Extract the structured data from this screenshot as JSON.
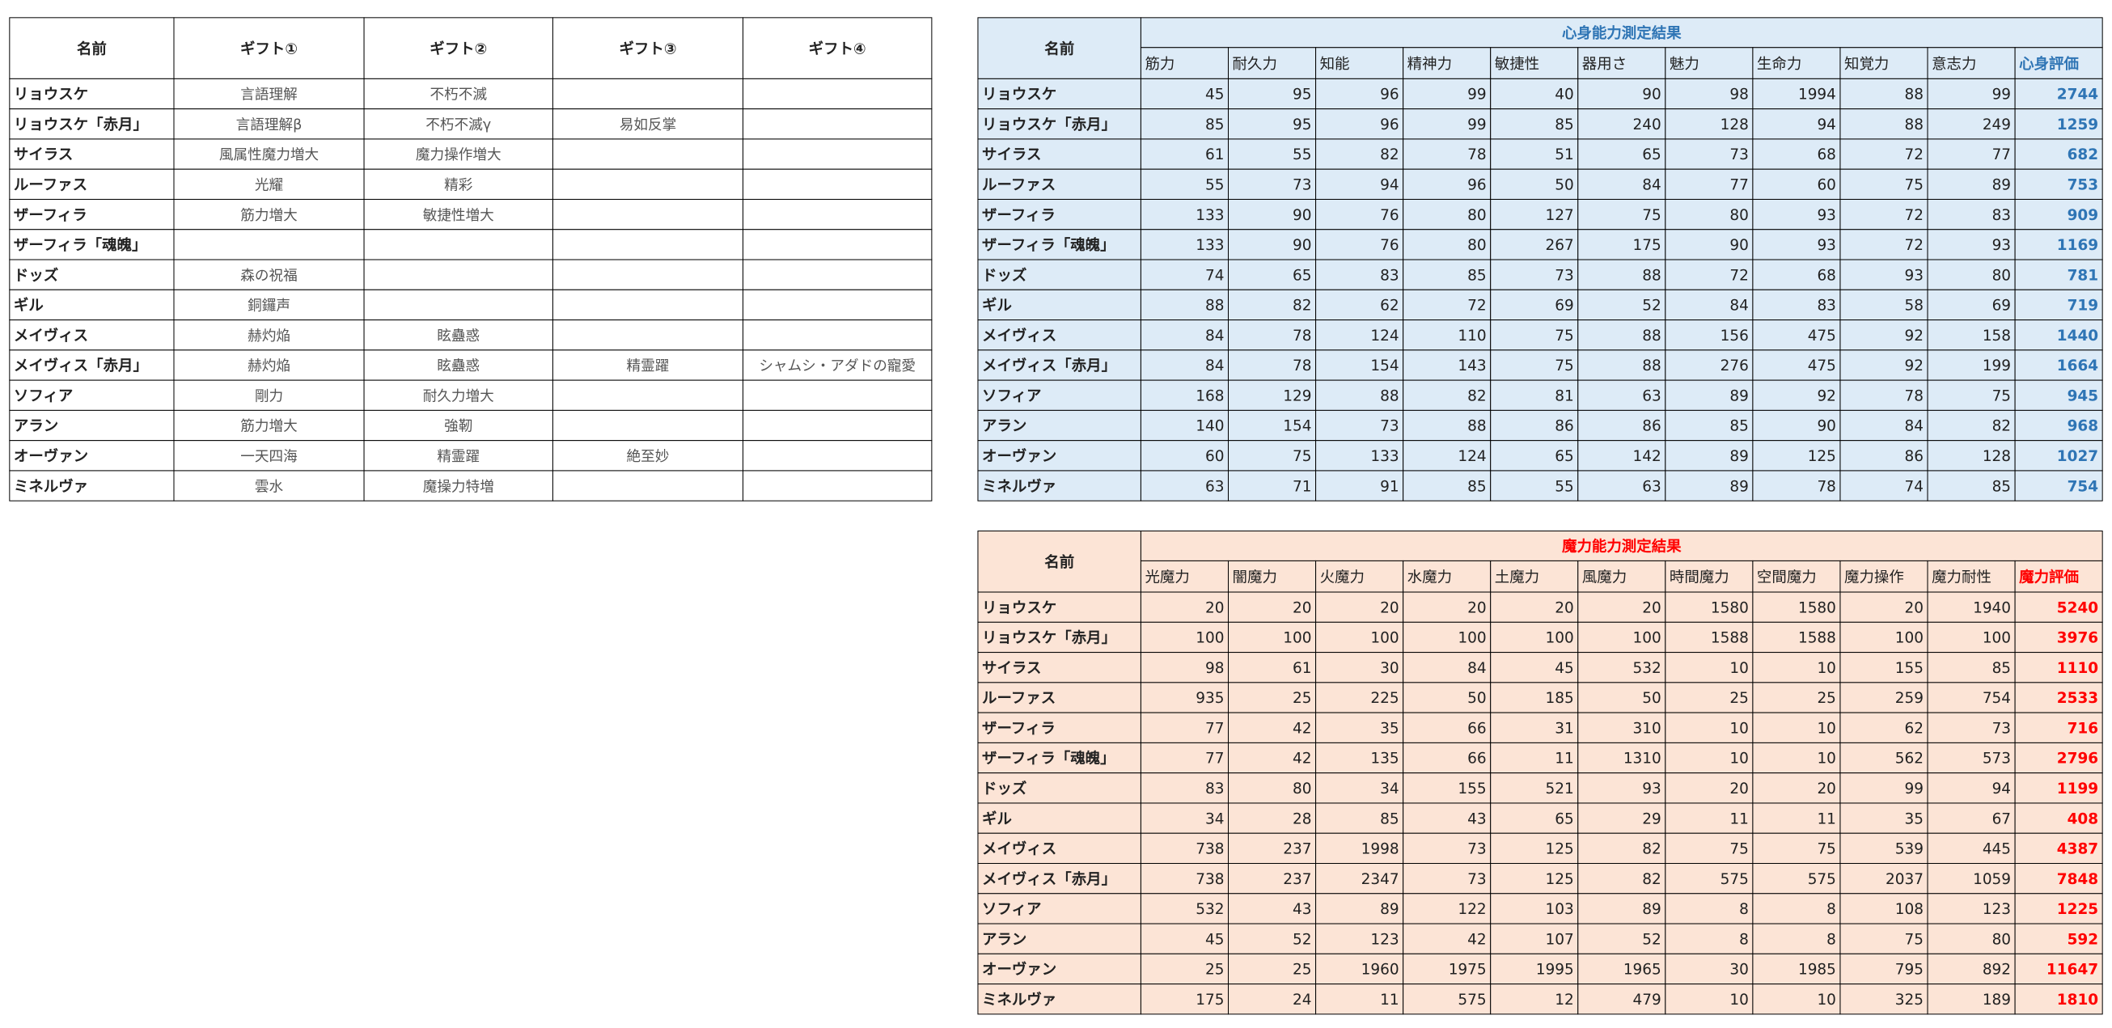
{
  "gifts": {
    "headers": [
      "名前",
      "ギフト①",
      "ギフト②",
      "ギフト③",
      "ギフト④"
    ],
    "rows": [
      [
        "リョウスケ",
        "言語理解",
        "不朽不滅",
        null,
        null
      ],
      [
        "リョウスケ「赤月」",
        "言語理解β",
        "不朽不滅γ",
        "易如反掌",
        null
      ],
      [
        "サイラス",
        "風属性魔力増大",
        "魔力操作増大",
        null,
        null
      ],
      [
        "ルーファス",
        "光耀",
        "精彩",
        null,
        null
      ],
      [
        "ザーフィラ",
        "筋力増大",
        "敏捷性増大",
        null,
        null
      ],
      [
        "ザーフィラ「魂魄」",
        null,
        null,
        null,
        null
      ],
      [
        "ドッズ",
        "森の祝福",
        null,
        null,
        null
      ],
      [
        "ギル",
        "銅鑼声",
        null,
        null,
        null
      ],
      [
        "メイヴィス",
        "赫灼焔",
        "眩蠱惑",
        null,
        null
      ],
      [
        "メイヴィス「赤月」",
        "赫灼焔",
        "眩蠱惑",
        "精霊躍",
        "シャムシ・アダドの寵愛"
      ],
      [
        "ソフィア",
        "剛力",
        "耐久力増大",
        null,
        null
      ],
      [
        "アラン",
        "筋力増大",
        "強靭",
        null,
        null
      ],
      [
        "オーヴァン",
        "一天四海",
        "精霊躍",
        "絶至妙",
        null
      ],
      [
        "ミネルヴァ",
        "雲水",
        "魔操力特増",
        null,
        null
      ]
    ]
  },
  "physical": {
    "title": "心身能力測定結果",
    "name_header": "名前",
    "columns": [
      "筋力",
      "耐久力",
      "知能",
      "精神力",
      "敏捷性",
      "器用さ",
      "魅力",
      "生命力",
      "知覚力",
      "意志力",
      "心身評価"
    ],
    "rows": [
      {
        "name": "リョウスケ",
        "values": [
          45,
          95,
          96,
          99,
          40,
          90,
          98,
          1994,
          88,
          99,
          2744
        ]
      },
      {
        "name": "リョウスケ「赤月」",
        "values": [
          85,
          95,
          96,
          99,
          85,
          240,
          128,
          94,
          88,
          249,
          1259
        ]
      },
      {
        "name": "サイラス",
        "values": [
          61,
          55,
          82,
          78,
          51,
          65,
          73,
          68,
          72,
          77,
          682
        ]
      },
      {
        "name": "ルーファス",
        "values": [
          55,
          73,
          94,
          96,
          50,
          84,
          77,
          60,
          75,
          89,
          753
        ]
      },
      {
        "name": "ザーフィラ",
        "values": [
          133,
          90,
          76,
          80,
          127,
          75,
          80,
          93,
          72,
          83,
          909
        ]
      },
      {
        "name": "ザーフィラ「魂魄」",
        "values": [
          133,
          90,
          76,
          80,
          267,
          175,
          90,
          93,
          72,
          93,
          1169
        ]
      },
      {
        "name": "ドッズ",
        "values": [
          74,
          65,
          83,
          85,
          73,
          88,
          72,
          68,
          93,
          80,
          781
        ]
      },
      {
        "name": "ギル",
        "values": [
          88,
          82,
          62,
          72,
          69,
          52,
          84,
          83,
          58,
          69,
          719
        ]
      },
      {
        "name": "メイヴィス",
        "values": [
          84,
          78,
          124,
          110,
          75,
          88,
          156,
          475,
          92,
          158,
          1440
        ]
      },
      {
        "name": "メイヴィス「赤月」",
        "values": [
          84,
          78,
          154,
          143,
          75,
          88,
          276,
          475,
          92,
          199,
          1664
        ]
      },
      {
        "name": "ソフィア",
        "values": [
          168,
          129,
          88,
          82,
          81,
          63,
          89,
          92,
          78,
          75,
          945
        ]
      },
      {
        "name": "アラン",
        "values": [
          140,
          154,
          73,
          88,
          86,
          86,
          85,
          90,
          84,
          82,
          968
        ]
      },
      {
        "name": "オーヴァン",
        "values": [
          60,
          75,
          133,
          124,
          65,
          142,
          89,
          125,
          86,
          128,
          1027
        ]
      },
      {
        "name": "ミネルヴァ",
        "values": [
          63,
          71,
          91,
          85,
          55,
          63,
          89,
          78,
          74,
          85,
          754
        ]
      }
    ]
  },
  "magic": {
    "title": "魔力能力測定結果",
    "name_header": "名前",
    "columns": [
      "光魔力",
      "闇魔力",
      "火魔力",
      "水魔力",
      "土魔力",
      "風魔力",
      "時間魔力",
      "空間魔力",
      "魔力操作",
      "魔力耐性",
      "魔力評価"
    ],
    "rows": [
      {
        "name": "リョウスケ",
        "values": [
          20,
          20,
          20,
          20,
          20,
          20,
          1580,
          1580,
          20,
          1940,
          5240
        ]
      },
      {
        "name": "リョウスケ「赤月」",
        "values": [
          100,
          100,
          100,
          100,
          100,
          100,
          1588,
          1588,
          100,
          100,
          3976
        ]
      },
      {
        "name": "サイラス",
        "values": [
          98,
          61,
          30,
          84,
          45,
          532,
          10,
          10,
          155,
          85,
          1110
        ]
      },
      {
        "name": "ルーファス",
        "values": [
          935,
          25,
          225,
          50,
          185,
          50,
          25,
          25,
          259,
          754,
          2533
        ]
      },
      {
        "name": "ザーフィラ",
        "values": [
          77,
          42,
          35,
          66,
          31,
          310,
          10,
          10,
          62,
          73,
          716
        ]
      },
      {
        "name": "ザーフィラ「魂魄」",
        "values": [
          77,
          42,
          135,
          66,
          11,
          1310,
          10,
          10,
          562,
          573,
          2796
        ]
      },
      {
        "name": "ドッズ",
        "values": [
          83,
          80,
          34,
          155,
          521,
          93,
          20,
          20,
          99,
          94,
          1199
        ]
      },
      {
        "name": "ギル",
        "values": [
          34,
          28,
          85,
          43,
          65,
          29,
          11,
          11,
          35,
          67,
          408
        ]
      },
      {
        "name": "メイヴィス",
        "values": [
          738,
          237,
          1998,
          73,
          125,
          82,
          75,
          75,
          539,
          445,
          4387
        ]
      },
      {
        "name": "メイヴィス「赤月」",
        "values": [
          738,
          237,
          2347,
          73,
          125,
          82,
          575,
          575,
          2037,
          1059,
          7848
        ]
      },
      {
        "name": "ソフィア",
        "values": [
          532,
          43,
          89,
          122,
          103,
          89,
          8,
          8,
          108,
          123,
          1225
        ]
      },
      {
        "name": "アラン",
        "values": [
          45,
          52,
          123,
          42,
          107,
          52,
          8,
          8,
          75,
          80,
          592
        ]
      },
      {
        "name": "オーヴァン",
        "values": [
          25,
          25,
          1960,
          1975,
          1995,
          1965,
          30,
          1985,
          795,
          892,
          11647
        ]
      },
      {
        "name": "ミネルヴァ",
        "values": [
          175,
          24,
          11,
          575,
          12,
          479,
          10,
          10,
          325,
          189,
          1810
        ]
      }
    ]
  }
}
